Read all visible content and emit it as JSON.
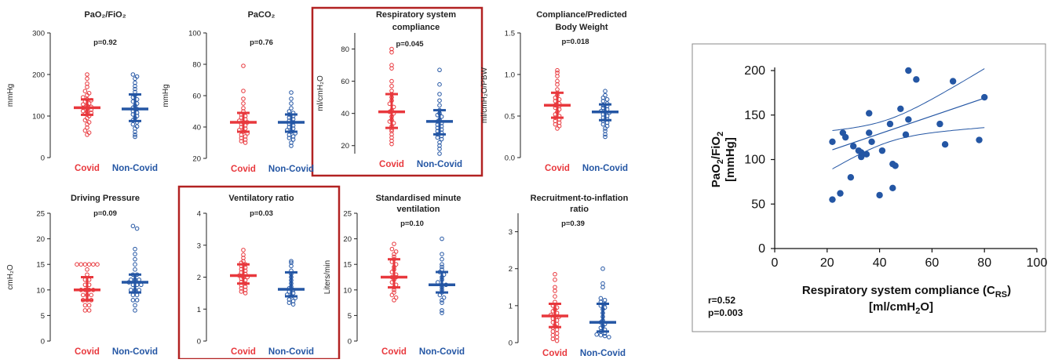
{
  "colors": {
    "covid": "#e8383d",
    "noncovid": "#2456a4",
    "highlight": "#b22222",
    "scatter": "#2456a4"
  },
  "chart_data": [
    {
      "type": "scatter",
      "subtype": "dot-plot-with-median-iqr",
      "title": "PaO₂/FiO₂",
      "p_value": "p=0.92",
      "ylabel": "mmHg",
      "ylim": [
        0,
        300
      ],
      "yticks": [
        0,
        100,
        200,
        300
      ],
      "categories": [
        "Covid",
        "Non-Covid"
      ],
      "highlighted": false,
      "series": [
        {
          "name": "Covid",
          "median": 120,
          "q1": 103,
          "q3": 140,
          "values": [
            200,
            190,
            178,
            170,
            160,
            155,
            150,
            145,
            140,
            138,
            135,
            130,
            128,
            125,
            122,
            120,
            118,
            115,
            112,
            110,
            108,
            105,
            100,
            95,
            90,
            85,
            80,
            72,
            65,
            60,
            55
          ]
        },
        {
          "name": "Non-Covid",
          "median": 117,
          "q1": 88,
          "q3": 152,
          "values": [
            200,
            195,
            190,
            180,
            172,
            165,
            158,
            150,
            145,
            140,
            135,
            130,
            125,
            120,
            117,
            112,
            108,
            104,
            100,
            95,
            90,
            85,
            80,
            75,
            70,
            62,
            55,
            50
          ]
        }
      ]
    },
    {
      "type": "scatter",
      "subtype": "dot-plot-with-median-iqr",
      "title": "PaCO₂",
      "p_value": "p=0.76",
      "ylabel": "mmHg",
      "ylim": [
        20,
        100
      ],
      "yticks": [
        20,
        40,
        60,
        80,
        100
      ],
      "categories": [
        "Covid",
        "Non-Covid"
      ],
      "highlighted": false,
      "series": [
        {
          "name": "Covid",
          "median": 43,
          "q1": 37,
          "q3": 49,
          "values": [
            79,
            63,
            58,
            55,
            52,
            50,
            48,
            47,
            46,
            45,
            44,
            43,
            43,
            42,
            41,
            40,
            39,
            38,
            37,
            36,
            35,
            34,
            33,
            32,
            31,
            30
          ]
        },
        {
          "name": "Non-Covid",
          "median": 43,
          "q1": 37,
          "q3": 48,
          "values": [
            62,
            58,
            55,
            52,
            50,
            49,
            48,
            47,
            46,
            45,
            44,
            43,
            42,
            41,
            40,
            39,
            38,
            37,
            36,
            35,
            34,
            33,
            32,
            30,
            28
          ]
        }
      ]
    },
    {
      "type": "scatter",
      "subtype": "dot-plot-with-median-iqr",
      "title": "Respiratory system compliance",
      "p_value": "p=0.045",
      "ylabel": "ml/cmH₂O",
      "ylim": [
        15,
        90
      ],
      "yticks": [
        20,
        40,
        60,
        80
      ],
      "categories": [
        "Covid",
        "Non-Covid"
      ],
      "highlighted": true,
      "series": [
        {
          "name": "Covid",
          "median": 41,
          "q1": 31,
          "q3": 52,
          "values": [
            80,
            78,
            70,
            68,
            60,
            57,
            54,
            52,
            50,
            48,
            46,
            44,
            42,
            41,
            40,
            38,
            36,
            35,
            34,
            32,
            30,
            29,
            27,
            25,
            23,
            21
          ]
        },
        {
          "name": "Non-Covid",
          "median": 35,
          "q1": 27,
          "q3": 42,
          "values": [
            67,
            58,
            52,
            48,
            45,
            42,
            40,
            39,
            38,
            36,
            35,
            34,
            33,
            32,
            31,
            30,
            29,
            28,
            27,
            26,
            25,
            24,
            22,
            20,
            18,
            15
          ]
        }
      ]
    },
    {
      "type": "scatter",
      "subtype": "dot-plot-with-median-iqr",
      "title": "Compliance/Predicted Body Weight",
      "p_value": "p=0.018",
      "ylabel": "ml/cmH₂O/PBW",
      "ylim": [
        0,
        1.5
      ],
      "yticks": [
        0.0,
        0.5,
        1.0,
        1.5
      ],
      "categories": [
        "Covid",
        "Non-Covid"
      ],
      "highlighted": false,
      "series": [
        {
          "name": "Covid",
          "median": 0.63,
          "q1": 0.48,
          "q3": 0.78,
          "values": [
            1.05,
            1.02,
            0.98,
            0.92,
            0.88,
            0.82,
            0.78,
            0.75,
            0.72,
            0.7,
            0.68,
            0.65,
            0.63,
            0.62,
            0.6,
            0.58,
            0.55,
            0.52,
            0.5,
            0.48,
            0.46,
            0.44,
            0.42,
            0.4,
            0.38,
            0.35
          ]
        },
        {
          "name": "Non-Covid",
          "median": 0.55,
          "q1": 0.45,
          "q3": 0.64,
          "values": [
            0.8,
            0.75,
            0.72,
            0.7,
            0.68,
            0.65,
            0.63,
            0.62,
            0.6,
            0.58,
            0.56,
            0.55,
            0.54,
            0.52,
            0.5,
            0.48,
            0.46,
            0.44,
            0.42,
            0.4,
            0.38,
            0.35,
            0.32,
            0.28,
            0.25
          ]
        }
      ]
    },
    {
      "type": "scatter",
      "subtype": "dot-plot-with-median-iqr",
      "title": "Driving Pressure",
      "p_value": "p=0.09",
      "ylabel": "cmH₂O",
      "ylim": [
        0,
        25
      ],
      "yticks": [
        0,
        5,
        10,
        15,
        20,
        25
      ],
      "categories": [
        "Covid",
        "Non-Covid"
      ],
      "highlighted": false,
      "series": [
        {
          "name": "Covid",
          "median": 10,
          "q1": 8,
          "q3": 12.5,
          "values": [
            15,
            15,
            15,
            15,
            15,
            15,
            14,
            13,
            12,
            12,
            11,
            11,
            10,
            10,
            10,
            10,
            9,
            9,
            9,
            8,
            8,
            8,
            7,
            7,
            6,
            6
          ]
        },
        {
          "name": "Non-Covid",
          "median": 11.5,
          "q1": 9.5,
          "q3": 13,
          "values": [
            22.5,
            22,
            18,
            17,
            16,
            15,
            14,
            13,
            13,
            12,
            12,
            12,
            11.5,
            11,
            11,
            11,
            10,
            10,
            10,
            9,
            9,
            8,
            8,
            7,
            6
          ]
        }
      ]
    },
    {
      "type": "scatter",
      "subtype": "dot-plot-with-median-iqr",
      "title": "Ventilatory ratio",
      "p_value": "p=0.03",
      "ylabel": "",
      "ylim": [
        0,
        4
      ],
      "yticks": [
        0,
        1,
        2,
        3,
        4
      ],
      "categories": [
        "Covid",
        "Non-Covid"
      ],
      "highlighted": true,
      "series": [
        {
          "name": "Covid",
          "median": 2.05,
          "q1": 1.8,
          "q3": 2.4,
          "values": [
            2.85,
            2.7,
            2.6,
            2.5,
            2.45,
            2.4,
            2.35,
            2.3,
            2.25,
            2.2,
            2.15,
            2.1,
            2.05,
            2.0,
            2.0,
            1.95,
            1.9,
            1.85,
            1.8,
            1.75,
            1.7,
            1.65,
            1.6,
            1.55,
            1.5
          ]
        },
        {
          "name": "Non-Covid",
          "median": 1.62,
          "q1": 1.4,
          "q3": 2.15,
          "values": [
            2.5,
            2.45,
            2.35,
            2.2,
            2.1,
            2.0,
            1.9,
            1.8,
            1.7,
            1.65,
            1.6,
            1.55,
            1.5,
            1.45,
            1.4,
            1.35,
            1.3,
            1.25,
            1.2,
            1.15
          ]
        }
      ]
    },
    {
      "type": "scatter",
      "subtype": "dot-plot-with-median-iqr",
      "title": "Standardised minute ventilation",
      "p_value": "p=0.10",
      "ylabel": "Liters/min",
      "ylim": [
        0,
        25
      ],
      "yticks": [
        0,
        5,
        10,
        15,
        20,
        25
      ],
      "categories": [
        "Covid",
        "Non-Covid"
      ],
      "highlighted": false,
      "series": [
        {
          "name": "Covid",
          "median": 12.5,
          "q1": 10.5,
          "q3": 16,
          "values": [
            19,
            18,
            17.5,
            17,
            16.5,
            16,
            15.5,
            15,
            14.5,
            14,
            13.5,
            13,
            12.5,
            12.5,
            12,
            11.5,
            11,
            10.5,
            10,
            9.5,
            9,
            8.5,
            8
          ]
        },
        {
          "name": "Non-Covid",
          "median": 11,
          "q1": 9.5,
          "q3": 13.5,
          "values": [
            20,
            17,
            16,
            15,
            14.5,
            14,
            13.5,
            13,
            12.5,
            12,
            11.5,
            11,
            11,
            10.5,
            10,
            9.5,
            9,
            8.5,
            8,
            7.5,
            6,
            5.5
          ]
        }
      ]
    },
    {
      "type": "scatter",
      "subtype": "dot-plot-with-median-iqr",
      "title": "Recruitment-to-inflation ratio",
      "p_value": "p=0.39",
      "ylabel": "",
      "ylim": [
        0,
        3.5
      ],
      "yticks": [
        0,
        1,
        2,
        3
      ],
      "categories": [
        "Covid",
        "Non-Covid"
      ],
      "highlighted": false,
      "series": [
        {
          "name": "Covid",
          "median": 0.72,
          "q1": 0.42,
          "q3": 1.05,
          "values": [
            1.85,
            1.7,
            1.5,
            1.4,
            1.25,
            1.1,
            1.0,
            0.95,
            0.9,
            0.85,
            0.8,
            0.75,
            0.72,
            0.7,
            0.65,
            0.6,
            0.55,
            0.5,
            0.45,
            0.4,
            0.35,
            0.3,
            0.25,
            0.2,
            0.15,
            0.1,
            0.05
          ]
        },
        {
          "name": "Non-Covid",
          "median": 0.55,
          "q1": 0.3,
          "q3": 1.05,
          "values": [
            2.0,
            1.6,
            1.5,
            1.2,
            1.15,
            1.1,
            1.05,
            1.0,
            0.95,
            0.9,
            0.8,
            0.7,
            0.6,
            0.55,
            0.5,
            0.45,
            0.4,
            0.35,
            0.3,
            0.25,
            0.22,
            0.2,
            0.18,
            0.15
          ]
        }
      ]
    },
    {
      "type": "scatter",
      "subtype": "correlation-with-regression-and-ci",
      "xlabel_main": "Respiratory system compliance (C",
      "xlabel_sub": "RS",
      "xlabel_close": ")",
      "xlabel_line2_pre": "[ml/cmH",
      "xlabel_line2_sub": "2",
      "xlabel_line2_post": "O]",
      "ylabel_pre": "PaO",
      "ylabel_sub1": "2",
      "ylabel_mid": "/FiO",
      "ylabel_sub2": "2",
      "ylabel_line2": "[mmHg]",
      "xlim": [
        0,
        100
      ],
      "ylim": [
        0,
        200
      ],
      "xticks": [
        0,
        20,
        40,
        60,
        80,
        100
      ],
      "yticks": [
        0,
        50,
        100,
        150,
        200
      ],
      "r": "r=0.52",
      "p_value": "p=0.003",
      "regression": {
        "slope": 1.0,
        "intercept": 89
      },
      "points": [
        [
          22,
          55
        ],
        [
          22,
          120
        ],
        [
          25,
          62
        ],
        [
          26,
          130
        ],
        [
          27,
          125
        ],
        [
          29,
          80
        ],
        [
          30,
          115
        ],
        [
          32,
          110
        ],
        [
          33,
          103
        ],
        [
          33,
          108
        ],
        [
          35,
          106
        ],
        [
          36,
          130
        ],
        [
          36,
          152
        ],
        [
          37,
          120
        ],
        [
          40,
          60
        ],
        [
          41,
          110
        ],
        [
          44,
          140
        ],
        [
          45,
          95
        ],
        [
          45,
          68
        ],
        [
          46,
          93
        ],
        [
          48,
          157
        ],
        [
          50,
          128
        ],
        [
          51,
          145
        ],
        [
          51,
          200
        ],
        [
          54,
          190
        ],
        [
          63,
          140
        ],
        [
          65,
          117
        ],
        [
          68,
          188
        ],
        [
          78,
          122
        ],
        [
          80,
          170
        ]
      ]
    }
  ]
}
